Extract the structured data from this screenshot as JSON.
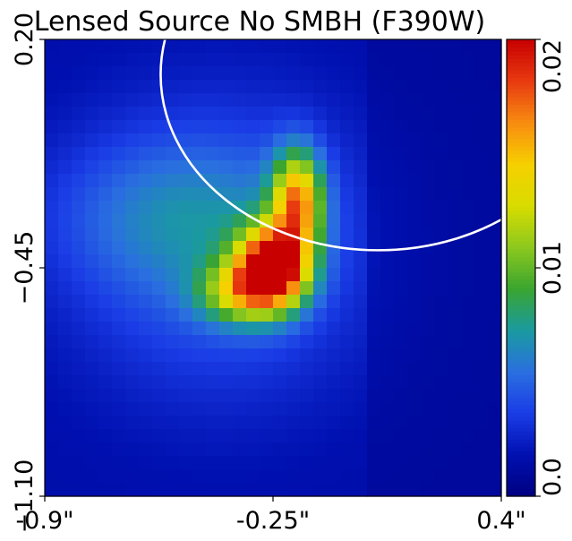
{
  "chart_data": {
    "type": "heatmap",
    "title": "Lensed Source No SMBH (F390W)",
    "xlabel": "",
    "ylabel": "",
    "x_ticks": [
      {
        "value": -0.9,
        "label": "-0.9\""
      },
      {
        "value": -0.25,
        "label": "-0.25\""
      },
      {
        "value": 0.4,
        "label": "0.4\""
      }
    ],
    "y_ticks": [
      {
        "value": 0.2,
        "label": "0.20"
      },
      {
        "value": -0.45,
        "label": "−0.45"
      },
      {
        "value": -1.1,
        "label": "−1.10"
      }
    ],
    "colorbar": {
      "range": [
        0.0,
        0.02
      ],
      "ticks": [
        {
          "value": 0.0,
          "label": "0.0"
        },
        {
          "value": 0.01,
          "label": "0.01"
        },
        {
          "value": 0.02,
          "label": "0.02"
        }
      ],
      "colors": [
        "#000080",
        "#0010b0",
        "#1a3ce6",
        "#2a6fe0",
        "#1a9aa0",
        "#3aa530",
        "#8cc81e",
        "#d8dc00",
        "#f6d000",
        "#f88c10",
        "#e83a10",
        "#c80000"
      ]
    },
    "xlim": [
      -0.9,
      0.4
    ],
    "ylim": [
      -1.1,
      0.2
    ],
    "grid": false,
    "overlay": {
      "shape": "ellipse",
      "color": "#ffffff",
      "center": [
        0.05,
        0.1
      ],
      "radii": [
        0.62,
        0.5
      ]
    },
    "components": [
      {
        "center": [
          -0.25,
          -0.45
        ],
        "sigma": [
          0.07,
          0.08
        ],
        "amplitude": 0.0185
      },
      {
        "center": [
          -0.18,
          -0.26
        ],
        "sigma": [
          0.05,
          0.1
        ],
        "amplitude": 0.0125
      },
      {
        "center": [
          -0.35,
          -0.52
        ],
        "sigma": [
          0.08,
          0.06
        ],
        "amplitude": 0.0075
      },
      {
        "center": [
          -0.4,
          -0.4
        ],
        "sigma": [
          0.3,
          0.3
        ],
        "amplitude": 0.0035
      },
      {
        "center": [
          -0.55,
          -0.3
        ],
        "sigma": [
          0.25,
          0.15
        ],
        "amplitude": 0.0025
      }
    ],
    "background_level": 0.0015
  }
}
